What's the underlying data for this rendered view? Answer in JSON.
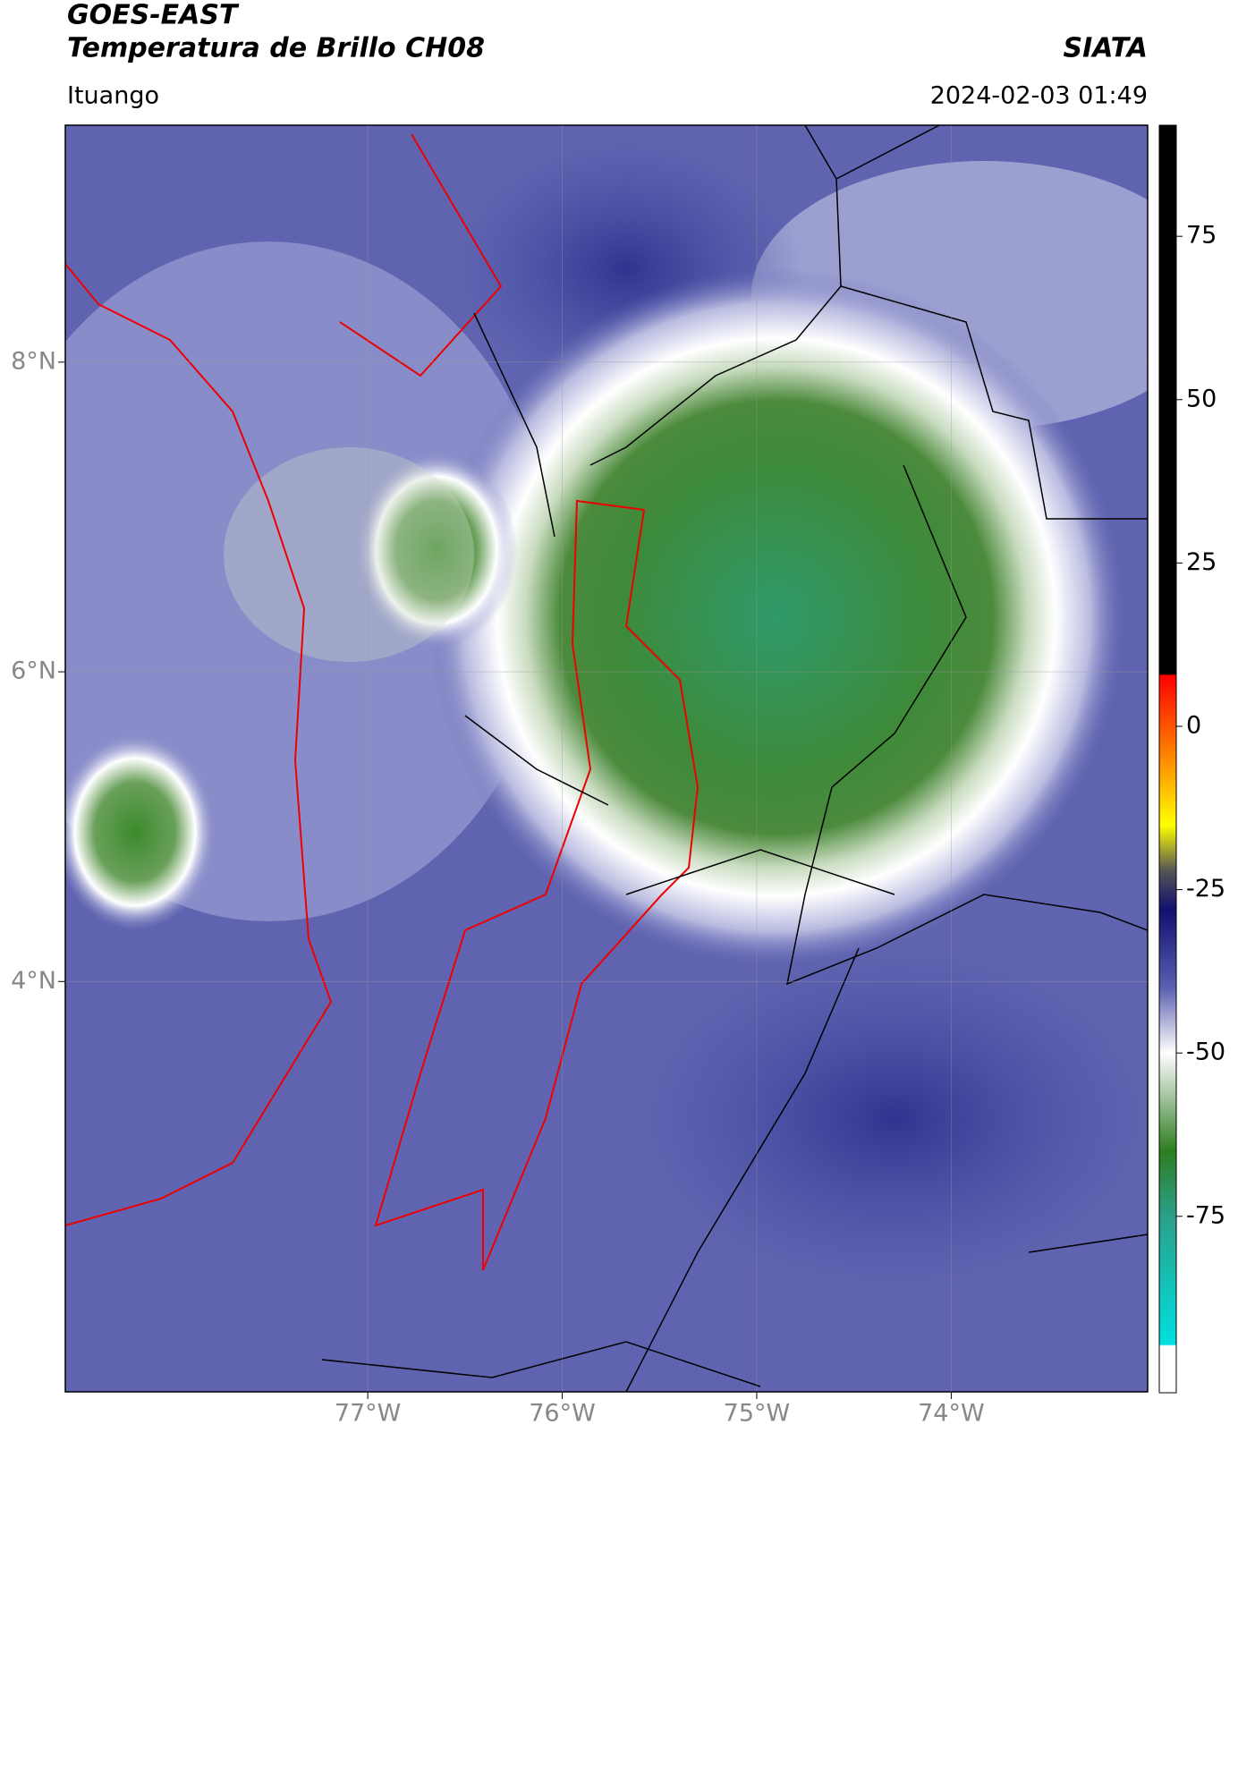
{
  "header": {
    "title": "GOES-EAST",
    "subtitle": "Temperatura de Brillo CH08",
    "source": "SIATA",
    "location": "Ituango",
    "datetime": "2024-02-03 01:49"
  },
  "map": {
    "xlim": [
      -78.555,
      -72.99
    ],
    "ylim": [
      1.35,
      9.53
    ],
    "xticks": [
      {
        "value": -77,
        "label": "77°W"
      },
      {
        "value": -76,
        "label": "76°W"
      },
      {
        "value": -75,
        "label": "75°W"
      },
      {
        "value": -74,
        "label": "74°W"
      }
    ],
    "yticks": [
      {
        "value": 8,
        "label": "8°N"
      },
      {
        "value": 6,
        "label": "6°N"
      },
      {
        "value": 4,
        "label": "4°N"
      }
    ],
    "grid": true
  },
  "colorbar": {
    "clim": [
      -102,
      92
    ],
    "ticks": [
      75,
      50,
      25,
      0,
      -25,
      -50,
      -75
    ]
  }
}
